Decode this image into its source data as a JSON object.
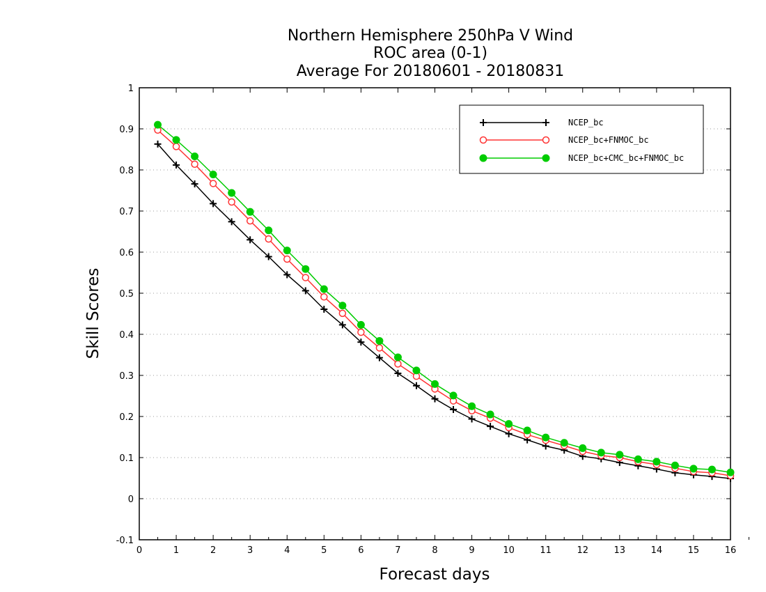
{
  "chart_data": {
    "type": "line",
    "title_lines": [
      "Northern Hemisphere 250hPa V Wind",
      "ROC area (0-1)",
      "Average For 20180601 - 20180831"
    ],
    "xlabel": "Forecast days",
    "ylabel": "Skill Scores",
    "xlim": [
      0,
      16
    ],
    "ylim": [
      -0.1,
      1
    ],
    "xticks": [
      0,
      1,
      2,
      3,
      4,
      5,
      6,
      7,
      8,
      9,
      10,
      11,
      12,
      13,
      14,
      15,
      16
    ],
    "yticks": [
      -0.1,
      0,
      0.1,
      0.2,
      0.3,
      0.4,
      0.5,
      0.6,
      0.7,
      0.8,
      0.9,
      1
    ],
    "ytick_labels": [
      "-0.1",
      "0",
      "0.1",
      "0.2",
      "0.3",
      "0.4",
      "0.5",
      "0.6",
      "0.7",
      "0.8",
      "0.9",
      "1"
    ],
    "grid": "horizontal dotted",
    "legend_position": "top-right",
    "x": [
      0.5,
      1,
      1.5,
      2,
      2.5,
      3,
      3.5,
      4,
      4.5,
      5,
      5.5,
      6,
      6.5,
      7,
      7.5,
      8,
      8.5,
      9,
      9.5,
      10,
      10.5,
      11,
      11.5,
      12,
      12.5,
      13,
      13.5,
      14,
      14.5,
      15,
      15.5,
      16
    ],
    "series": [
      {
        "name": "NCEP_bc",
        "color": "#000000",
        "marker": "plus",
        "values": [
          0.863,
          0.812,
          0.766,
          0.718,
          0.674,
          0.63,
          0.589,
          0.545,
          0.506,
          0.461,
          0.423,
          0.381,
          0.343,
          0.305,
          0.275,
          0.243,
          0.217,
          0.194,
          0.176,
          0.158,
          0.143,
          0.128,
          0.118,
          0.103,
          0.097,
          0.088,
          0.08,
          0.072,
          0.063,
          0.058,
          0.054,
          0.049
        ]
      },
      {
        "name": "NCEP_bc+FNMOC_bc",
        "color": "#ff3333",
        "marker": "open-circle",
        "values": [
          0.897,
          0.857,
          0.814,
          0.767,
          0.722,
          0.676,
          0.632,
          0.583,
          0.538,
          0.491,
          0.451,
          0.405,
          0.367,
          0.328,
          0.298,
          0.267,
          0.238,
          0.214,
          0.196,
          0.173,
          0.156,
          0.142,
          0.129,
          0.115,
          0.105,
          0.1,
          0.09,
          0.083,
          0.074,
          0.066,
          0.063,
          0.056
        ]
      },
      {
        "name": "NCEP_bc+CMC_bc+FNMOC_bc",
        "color": "#00cc00",
        "marker": "filled-circle",
        "values": [
          0.91,
          0.873,
          0.833,
          0.789,
          0.744,
          0.698,
          0.653,
          0.604,
          0.559,
          0.51,
          0.47,
          0.423,
          0.384,
          0.344,
          0.312,
          0.279,
          0.251,
          0.225,
          0.205,
          0.182,
          0.166,
          0.149,
          0.136,
          0.123,
          0.112,
          0.107,
          0.096,
          0.09,
          0.081,
          0.073,
          0.071,
          0.064
        ]
      }
    ]
  }
}
